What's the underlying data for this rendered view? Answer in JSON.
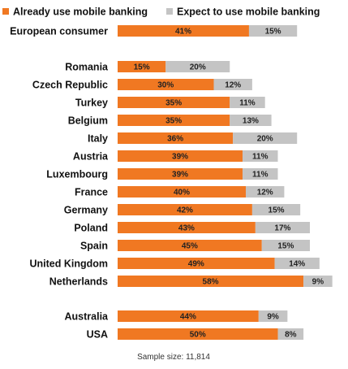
{
  "chart_data": {
    "type": "bar",
    "orientation": "horizontal",
    "stacked": true,
    "legend_position": "top",
    "grid": false,
    "categories": [
      "European consumer",
      "Romania",
      "Czech Republic",
      "Turkey",
      "Belgium",
      "Italy",
      "Austria",
      "Luxembourg",
      "France",
      "Germany",
      "Poland",
      "Spain",
      "United Kingdom",
      "Netherlands",
      "Australia",
      "USA"
    ],
    "series": [
      {
        "name": "Already use mobile banking",
        "color": "#f07822",
        "values": [
          41,
          15,
          30,
          35,
          35,
          36,
          39,
          39,
          40,
          42,
          43,
          45,
          49,
          58,
          44,
          50
        ],
        "labels": [
          "41%",
          "15%",
          "30%",
          "35%",
          "35%",
          "36%",
          "39%",
          "39%",
          "40%",
          "42%",
          "43%",
          "45%",
          "49%",
          "58%",
          "44%",
          "50%"
        ]
      },
      {
        "name": "Expect to use mobile banking",
        "color": "#c4c4c4",
        "values": [
          15,
          20,
          12,
          11,
          13,
          20,
          11,
          11,
          12,
          15,
          17,
          15,
          14,
          9,
          9,
          8
        ],
        "labels": [
          "15%",
          "20%",
          "12%",
          "11%",
          "13%",
          "20%",
          "11%",
          "11%",
          "12%",
          "15%",
          "17%",
          "15%",
          "14%",
          "9%",
          "9%",
          "8%"
        ]
      }
    ],
    "xlim": [
      0,
      70
    ]
  },
  "note": "Sample size: 11,814"
}
